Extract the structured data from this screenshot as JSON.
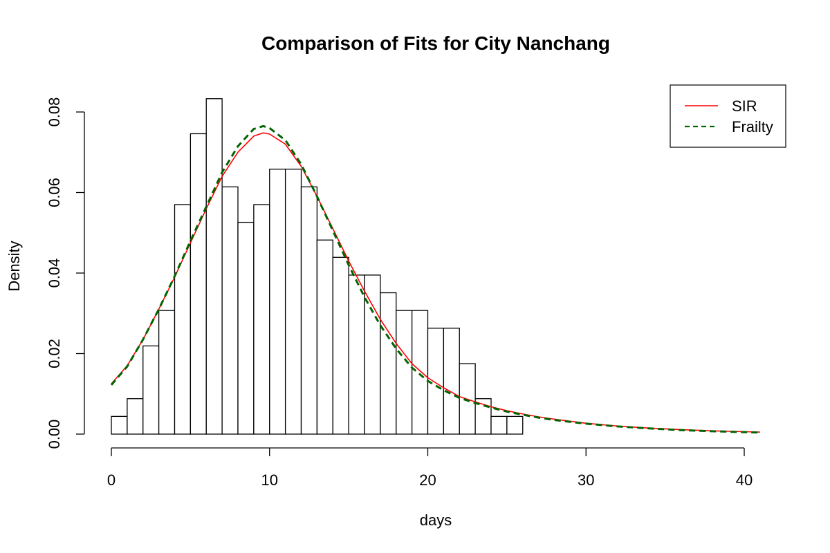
{
  "chart_data": {
    "type": "bar",
    "title": "Comparison of Fits for City Nanchang",
    "xlabel": "days",
    "ylabel": "Density",
    "xlim": [
      0,
      41
    ],
    "ylim": [
      0,
      0.08
    ],
    "x_ticks": [
      "0",
      "10",
      "20",
      "30",
      "40"
    ],
    "y_ticks": [
      "0.00",
      "0.02",
      "0.04",
      "0.06",
      "0.08"
    ],
    "grid": false,
    "legend_position": "top-right",
    "histogram": {
      "bin_width": 1,
      "bin_starts": [
        0,
        1,
        2,
        3,
        4,
        5,
        6,
        7,
        8,
        9,
        10,
        11,
        12,
        13,
        14,
        15,
        16,
        17,
        18,
        19,
        20,
        21,
        22,
        23,
        24,
        25
      ],
      "density": [
        0.0044,
        0.0088,
        0.0219,
        0.0307,
        0.057,
        0.0746,
        0.0833,
        0.0614,
        0.0526,
        0.057,
        0.0658,
        0.0658,
        0.0614,
        0.0482,
        0.0439,
        0.0395,
        0.0395,
        0.0351,
        0.0307,
        0.0307,
        0.0263,
        0.0263,
        0.0175,
        0.0088,
        0.0044,
        0.0044
      ]
    },
    "series": [
      {
        "name": "SIR",
        "color": "#ff0000",
        "style": "solid",
        "x": [
          0,
          1,
          2,
          3,
          4,
          5,
          6,
          7,
          8,
          9,
          9.6,
          10,
          11,
          12,
          13,
          14,
          15,
          16,
          17,
          18,
          19,
          20,
          21,
          22,
          23,
          24,
          25,
          26,
          27,
          28,
          30,
          32,
          34,
          36,
          38,
          40,
          41
        ],
        "y": [
          0.0125,
          0.017,
          0.0235,
          0.031,
          0.039,
          0.0475,
          0.056,
          0.064,
          0.07,
          0.074,
          0.0748,
          0.0745,
          0.072,
          0.0665,
          0.059,
          0.051,
          0.043,
          0.0355,
          0.0285,
          0.0225,
          0.0175,
          0.014,
          0.0115,
          0.0093,
          0.008,
          0.0068,
          0.0058,
          0.005,
          0.0043,
          0.0037,
          0.0027,
          0.002,
          0.0015,
          0.0011,
          0.0008,
          0.0006,
          0.0005
        ]
      },
      {
        "name": "Frailty",
        "color": "#006400",
        "style": "dashed",
        "x": [
          0,
          1,
          2,
          3,
          4,
          5,
          6,
          7,
          8,
          9,
          9.6,
          10,
          11,
          12,
          13,
          14,
          15,
          16,
          17,
          18,
          19,
          20,
          21,
          22,
          23,
          24,
          25,
          26,
          27,
          28,
          30,
          32,
          34,
          36,
          38,
          40,
          41
        ],
        "y": [
          0.0122,
          0.0168,
          0.0235,
          0.031,
          0.0392,
          0.048,
          0.0565,
          0.065,
          0.0715,
          0.0758,
          0.0765,
          0.076,
          0.073,
          0.067,
          0.059,
          0.0505,
          0.042,
          0.034,
          0.027,
          0.0212,
          0.0165,
          0.0132,
          0.0109,
          0.009,
          0.0077,
          0.0066,
          0.0056,
          0.0048,
          0.0041,
          0.0035,
          0.0026,
          0.0019,
          0.0014,
          0.001,
          0.0007,
          0.0005,
          0.0004
        ]
      }
    ]
  }
}
